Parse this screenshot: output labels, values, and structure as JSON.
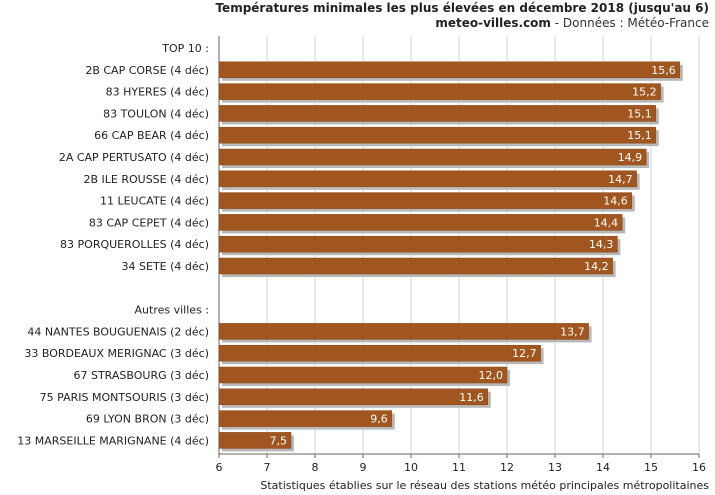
{
  "header": {
    "title": "Températures minimales les plus élevées en décembre 2018 (jusqu'au 6)",
    "site": "meteo-villes.com",
    "source": " - Données : Météo-France"
  },
  "footer": {
    "note": "Statistiques établies sur le réseau des stations météo principales métropolitaines"
  },
  "colors": {
    "bar": "#a0561e",
    "bar_shadow": "#b8b8b8",
    "grid": "#d6d6d6",
    "axis": "#666666"
  },
  "chart_data": {
    "type": "bar",
    "orientation": "horizontal",
    "title": "Températures minimales les plus élevées en décembre 2018 (jusqu'au 6)",
    "xlim": [
      6,
      16
    ],
    "xticks": [
      6,
      7,
      8,
      9,
      10,
      11,
      12,
      13,
      14,
      15,
      16
    ],
    "grid": true,
    "groups": [
      {
        "label": "TOP 10 :",
        "categories": [
          "2B CAP CORSE (4 déc)",
          "83 HYERES (4 déc)",
          "83 TOULON (4 déc)",
          "66 CAP BEAR (4 déc)",
          "2A CAP PERTUSATO (4 déc)",
          "2B ILE ROUSSE (4 déc)",
          "11 LEUCATE (4 déc)",
          "83 CAP CEPET (4 déc)",
          "83 PORQUEROLLES (4 déc)",
          "34 SETE (4 déc)"
        ],
        "values": [
          15.6,
          15.2,
          15.1,
          15.1,
          14.9,
          14.7,
          14.6,
          14.4,
          14.3,
          14.2
        ],
        "value_labels": [
          "15,6",
          "15,2",
          "15,1",
          "15,1",
          "14,9",
          "14,7",
          "14,6",
          "14,4",
          "14,3",
          "14,2"
        ]
      },
      {
        "label": "Autres villes :",
        "categories": [
          "44 NANTES BOUGUENAIS (2 déc)",
          "33 BORDEAUX MERIGNAC (3 déc)",
          "67 STRASBOURG (3 déc)",
          "75 PARIS MONTSOURIS (3 déc)",
          "69 LYON BRON (3 déc)",
          "13 MARSEILLE MARIGNANE (4 déc)"
        ],
        "values": [
          13.7,
          12.7,
          12.0,
          11.6,
          9.6,
          7.5
        ],
        "value_labels": [
          "13,7",
          "12,7",
          "12,0",
          "11,6",
          "9,6",
          "7,5"
        ]
      }
    ]
  }
}
